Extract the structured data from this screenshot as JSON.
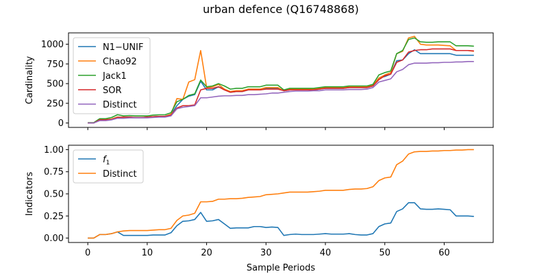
{
  "chart_data": {
    "type": "line",
    "title": "urban defence (Q16748868)",
    "colors": {
      "N1-UNIF": "#1f77b4",
      "Chao92": "#ff7f0e",
      "Jack1": "#2ca02c",
      "SOR": "#d62728",
      "Distinct": "#9467bd",
      "f1": "#1f77b4",
      "Distinct2": "#ff7f0e"
    },
    "xlabel": "Sample Periods",
    "xlim": [
      -3.25,
      68.25
    ],
    "xticks": [
      0,
      10,
      20,
      30,
      40,
      50,
      60
    ],
    "panels": [
      {
        "ylabel": "Cardinality",
        "ylim": [
          -56,
          1144
        ],
        "yticks": [
          0,
          250,
          500,
          750,
          1000
        ],
        "legend": "upper-left",
        "series": [
          {
            "name": "N1−UNIF",
            "color_key": "N1-UNIF",
            "values": [
              0,
              0,
              45,
              45,
              50,
              75,
              70,
              75,
              70,
              70,
              75,
              80,
              85,
              85,
              110,
              220,
              300,
              340,
              360,
              530,
              420,
              420,
              460,
              430,
              390,
              400,
              400,
              420,
              420,
              420,
              440,
              440,
              440,
              410,
              420,
              420,
              420,
              420,
              420,
              430,
              440,
              440,
              440,
              440,
              450,
              450,
              450,
              450,
              470,
              570,
              590,
              620,
              790,
              800,
              880,
              930,
              880,
              880,
              880,
              880,
              880,
              880,
              860,
              860,
              860,
              860
            ]
          },
          {
            "name": "Chao92",
            "color_key": "Chao92",
            "values": [
              0,
              0,
              45,
              45,
              50,
              75,
              70,
              75,
              70,
              70,
              75,
              80,
              85,
              85,
              110,
              310,
              300,
              520,
              550,
              920,
              450,
              460,
              490,
              430,
              400,
              410,
              410,
              430,
              430,
              430,
              450,
              450,
              450,
              410,
              430,
              430,
              430,
              430,
              430,
              440,
              450,
              450,
              450,
              450,
              460,
              460,
              460,
              460,
              480,
              570,
              610,
              640,
              880,
              910,
              1080,
              1100,
              1000,
              990,
              990,
              990,
              985,
              980,
              920,
              920,
              920,
              910
            ]
          },
          {
            "name": "Jack1",
            "color_key": "Jack1",
            "values": [
              5,
              5,
              55,
              55,
              70,
              105,
              90,
              95,
              90,
              90,
              90,
              100,
              105,
              105,
              130,
              270,
              300,
              350,
              370,
              545,
              460,
              470,
              500,
              470,
              430,
              440,
              440,
              460,
              460,
              460,
              480,
              480,
              480,
              420,
              440,
              440,
              440,
              440,
              440,
              450,
              460,
              460,
              460,
              460,
              470,
              470,
              470,
              470,
              490,
              610,
              640,
              660,
              880,
              920,
              1060,
              1080,
              1030,
              1025,
              1025,
              1030,
              1030,
              1030,
              980,
              980,
              980,
              975
            ]
          },
          {
            "name": "SOR",
            "color_key": "SOR",
            "values": [
              0,
              0,
              40,
              40,
              45,
              70,
              75,
              75,
              70,
              70,
              75,
              80,
              85,
              85,
              100,
              190,
              220,
              220,
              230,
              420,
              440,
              440,
              460,
              420,
              390,
              400,
              400,
              420,
              420,
              420,
              430,
              430,
              430,
              410,
              420,
              420,
              420,
              420,
              420,
              430,
              440,
              440,
              440,
              440,
              450,
              450,
              450,
              450,
              470,
              550,
              600,
              620,
              770,
              800,
              900,
              920,
              930,
              930,
              940,
              940,
              940,
              940,
              920,
              920,
              920,
              915
            ]
          },
          {
            "name": "Distinct",
            "color_key": "Distinct",
            "values": [
              0,
              0,
              30,
              30,
              40,
              60,
              60,
              65,
              65,
              65,
              65,
              70,
              75,
              75,
              90,
              180,
              200,
              210,
              220,
              320,
              320,
              330,
              340,
              345,
              345,
              350,
              350,
              360,
              360,
              365,
              370,
              380,
              380,
              390,
              400,
              405,
              405,
              405,
              410,
              410,
              420,
              420,
              420,
              420,
              425,
              425,
              425,
              430,
              450,
              520,
              540,
              560,
              650,
              680,
              740,
              760,
              760,
              760,
              765,
              765,
              770,
              770,
              775,
              775,
              780,
              780
            ]
          }
        ]
      },
      {
        "ylabel": "Indicators",
        "ylim": [
          -0.05,
          1.05
        ],
        "yticks": [
          0.0,
          0.25,
          0.5,
          0.75,
          1.0
        ],
        "ytick_labels": [
          "0.00",
          "0.25",
          "0.50",
          "0.75",
          "1.00"
        ],
        "legend": "upper-left",
        "series": [
          {
            "name": "f1",
            "legend_main": "f",
            "legend_sub": "1",
            "color_key": "f1",
            "values": [
              0,
              0,
              0.04,
              0.04,
              0.05,
              0.07,
              0.03,
              0.03,
              0.03,
              0.03,
              0.03,
              0.035,
              0.035,
              0.035,
              0.06,
              0.14,
              0.19,
              0.195,
              0.21,
              0.29,
              0.19,
              0.195,
              0.21,
              0.16,
              0.11,
              0.115,
              0.115,
              0.115,
              0.13,
              0.13,
              0.12,
              0.125,
              0.12,
              0.03,
              0.04,
              0.045,
              0.04,
              0.04,
              0.04,
              0.045,
              0.05,
              0.045,
              0.045,
              0.045,
              0.05,
              0.04,
              0.035,
              0.035,
              0.05,
              0.13,
              0.16,
              0.17,
              0.3,
              0.33,
              0.4,
              0.4,
              0.33,
              0.325,
              0.325,
              0.33,
              0.325,
              0.32,
              0.25,
              0.25,
              0.25,
              0.245
            ]
          },
          {
            "name": "Distinct",
            "color_key": "Distinct2",
            "values": [
              0,
              0,
              0.04,
              0.04,
              0.05,
              0.07,
              0.08,
              0.085,
              0.085,
              0.085,
              0.085,
              0.09,
              0.095,
              0.095,
              0.11,
              0.2,
              0.25,
              0.26,
              0.28,
              0.41,
              0.41,
              0.415,
              0.44,
              0.44,
              0.445,
              0.445,
              0.45,
              0.46,
              0.465,
              0.47,
              0.49,
              0.495,
              0.5,
              0.51,
              0.52,
              0.52,
              0.52,
              0.52,
              0.525,
              0.53,
              0.54,
              0.54,
              0.54,
              0.54,
              0.55,
              0.555,
              0.555,
              0.56,
              0.58,
              0.65,
              0.68,
              0.69,
              0.83,
              0.87,
              0.95,
              0.975,
              0.98,
              0.98,
              0.985,
              0.985,
              0.99,
              0.99,
              0.995,
              0.995,
              1.0,
              1.0
            ]
          }
        ]
      }
    ]
  }
}
